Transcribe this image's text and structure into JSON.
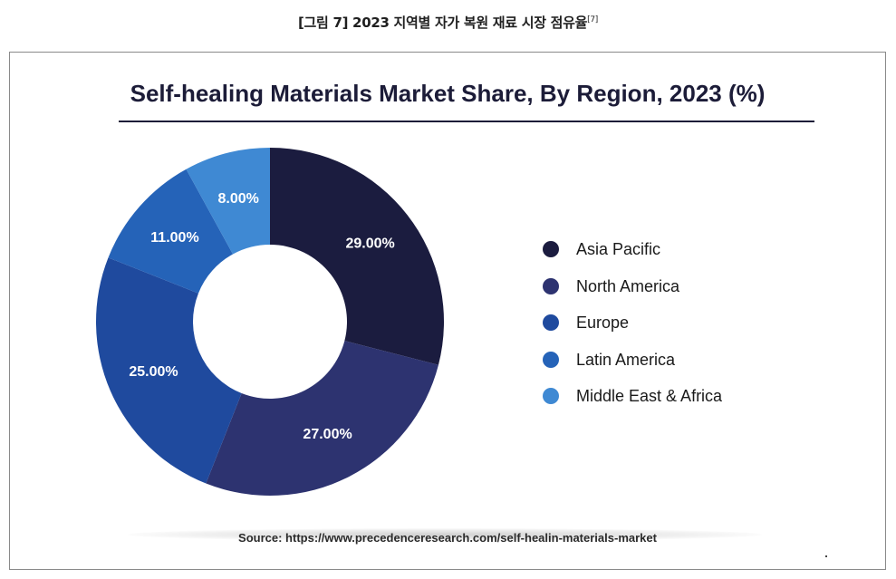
{
  "caption": {
    "text": "[그림 7] 2023 지역별 자가 복원 재료 시장 점유율",
    "ref": "[7]"
  },
  "chart_data": {
    "type": "pie",
    "style": "donut",
    "title": "Self-healing Materials Market Share, By Region, 2023 (%)",
    "categories": [
      "Asia Pacific",
      "North America",
      "Europe",
      "Latin America",
      "Middle East & Africa"
    ],
    "values": [
      29,
      27,
      25,
      11,
      8
    ],
    "data_labels": [
      "29.00%",
      "27.00%",
      "25.00%",
      "11.00%",
      "8.00%"
    ],
    "colors": [
      "#1b1c3f",
      "#2d3370",
      "#1f4a9e",
      "#2563b8",
      "#3f89d3"
    ],
    "legend_position": "right",
    "source": "Source: https://www.precedenceresearch.com/self-healin-materials-market"
  }
}
